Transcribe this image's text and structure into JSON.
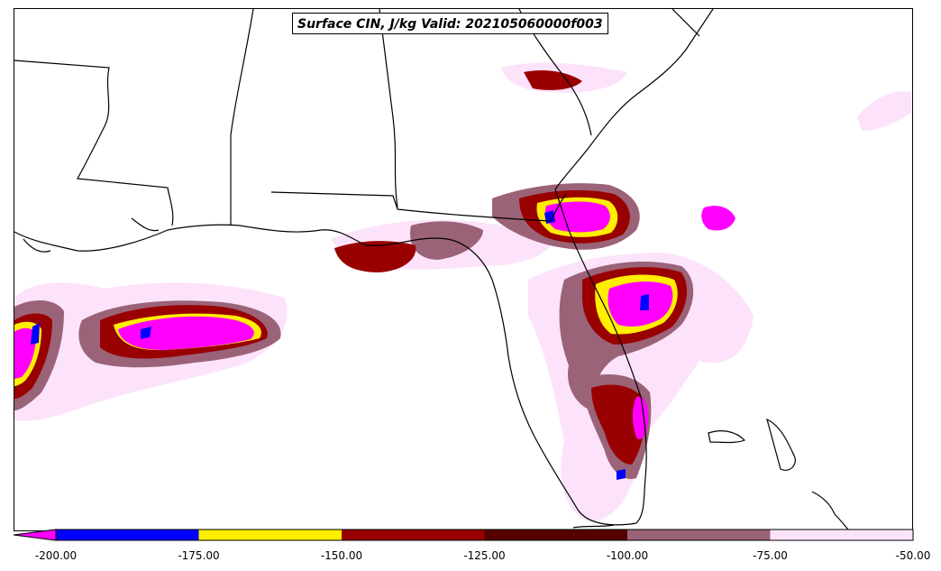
{
  "title": "Surface CIN, J/kg Valid: 202105060000f003",
  "colorbar": {
    "ticks": [
      "-200.00",
      "-175.00",
      "-150.00",
      "-125.00",
      "-100.00",
      "-75.00",
      "-50.00"
    ],
    "bins": [
      {
        "color": "#0000ff"
      },
      {
        "color": "#ffee00"
      },
      {
        "color": "#990000"
      },
      {
        "color": "#560000"
      },
      {
        "color": "#9b6378"
      },
      {
        "color": "#fce3fb"
      }
    ],
    "under_color": "#ff00ff"
  },
  "field_colors": {
    "very_low": "#ff00ff",
    "blue": "#0000ff",
    "yellow": "#ffee00",
    "red": "#990000",
    "dark": "#560000",
    "mauve": "#9b6378",
    "pale": "#fce3fb"
  }
}
